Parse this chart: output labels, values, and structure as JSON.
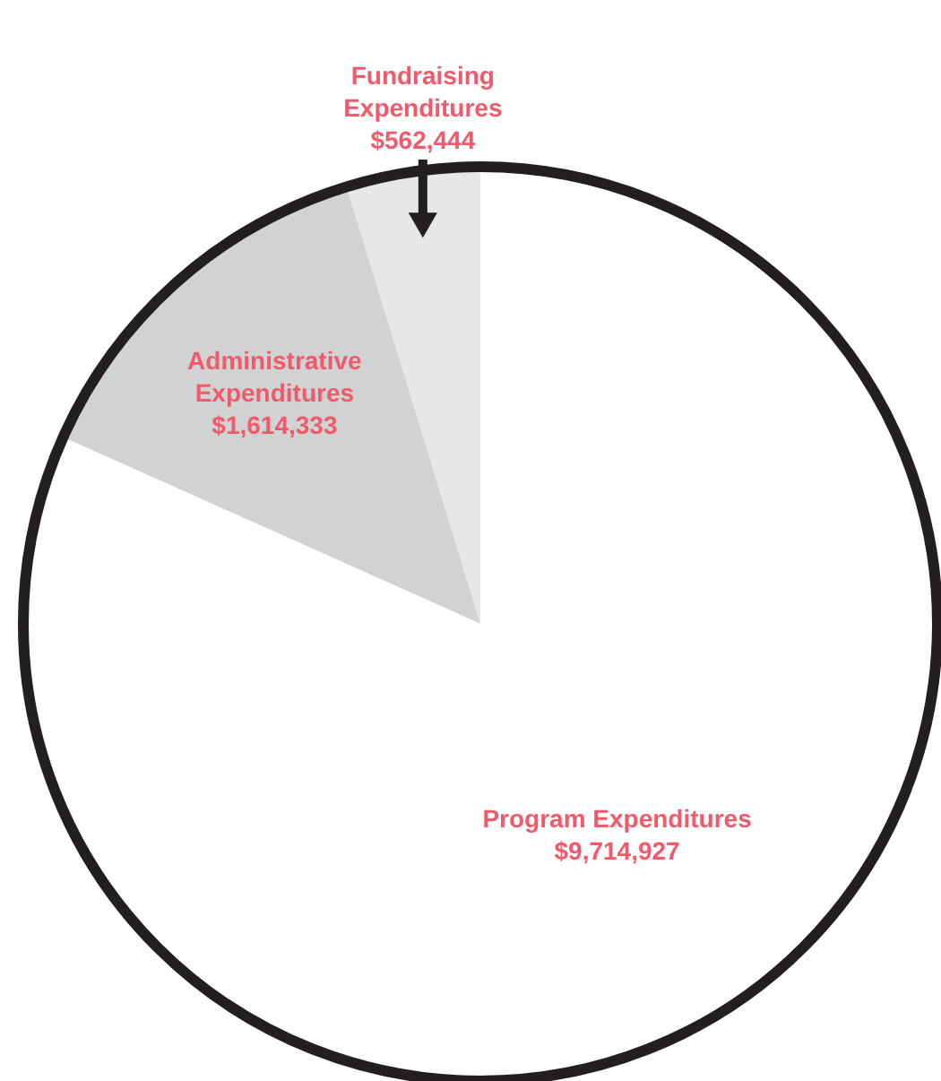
{
  "chart_data": {
    "type": "pie",
    "categories": [
      "Fundraising\nExpenditures",
      "Administrative\nExpenditures",
      "Program Expenditures"
    ],
    "values": [
      562444,
      1614333,
      9714927
    ],
    "colors": [
      "#e6e7e9",
      "#d1d2d4",
      "#ffffff"
    ],
    "value_labels": [
      "$562,444",
      "$1,614,333",
      "$9,714,927"
    ]
  }
}
